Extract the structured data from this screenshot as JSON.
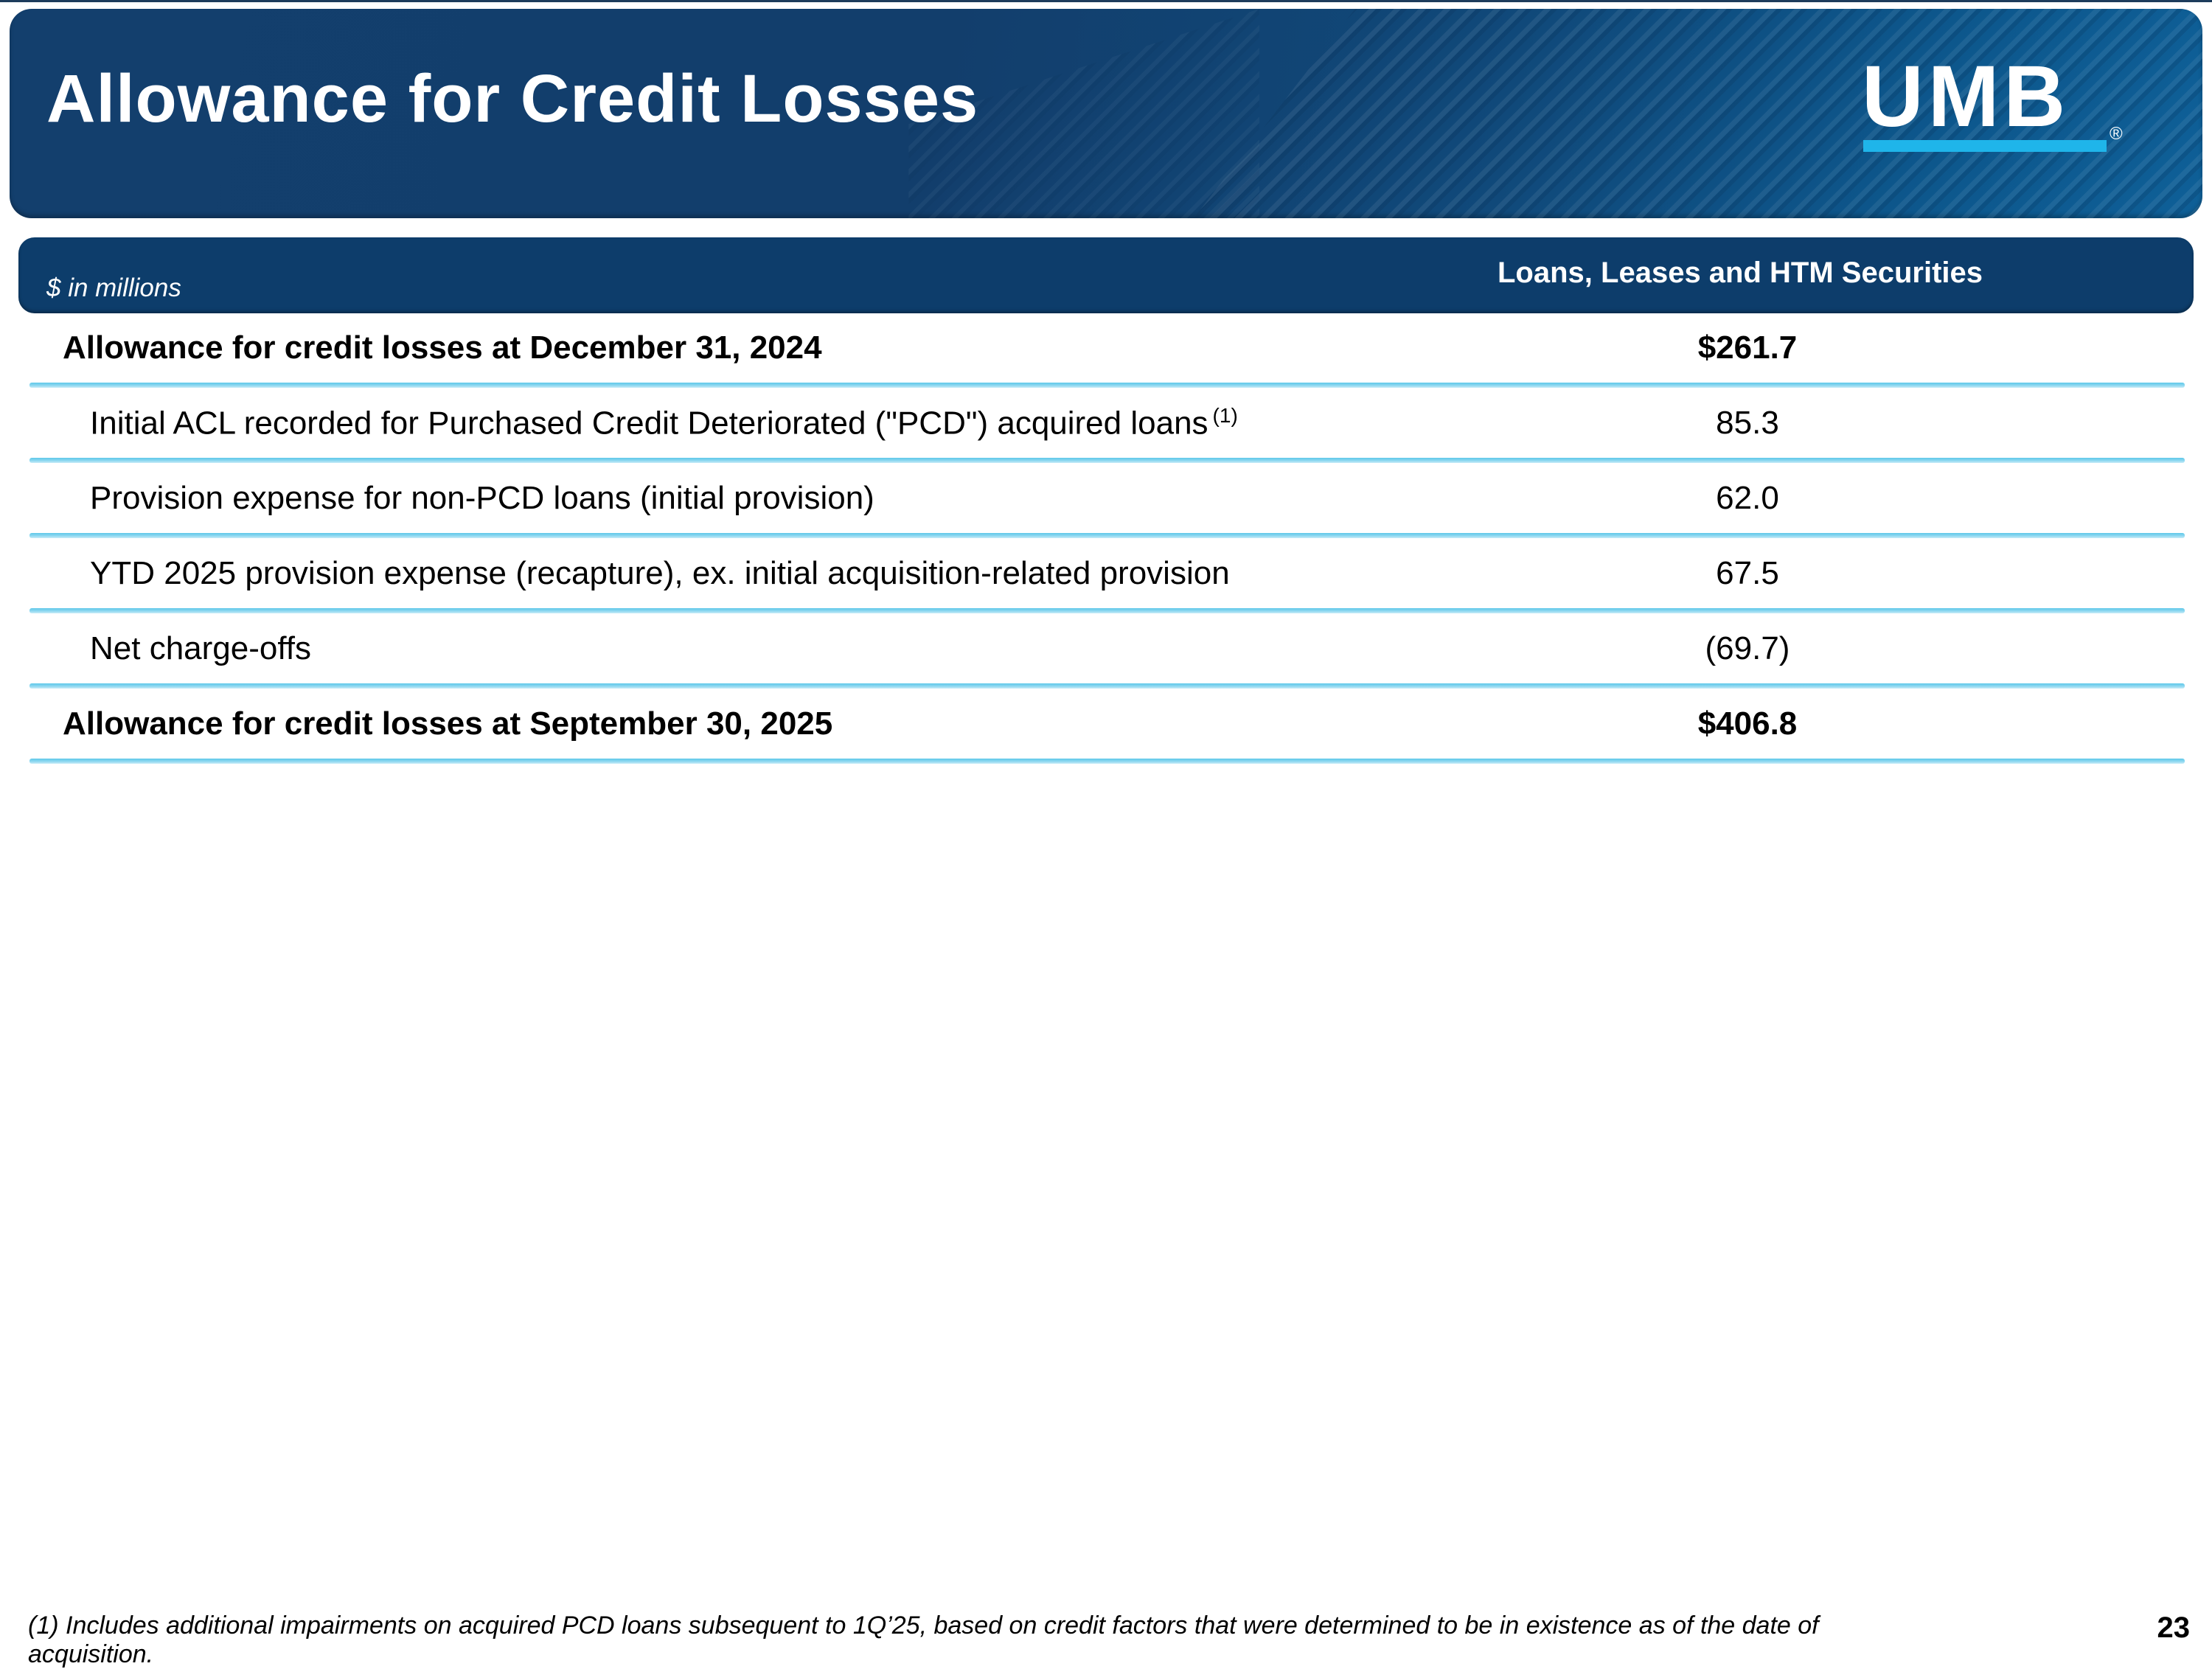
{
  "slide": {
    "title": "Allowance for Credit Losses",
    "logo": {
      "text": "UMB",
      "registered_mark": "®"
    },
    "page_number": "23"
  },
  "table": {
    "units_note": "$ in millions",
    "column_header": "Loans, Leases and HTM Securities",
    "rows": [
      {
        "label": "Allowance for credit losses at December 31, 2024",
        "value": "$261.7",
        "style": "total"
      },
      {
        "label": "Initial ACL recorded for Purchased Credit Deteriorated (\"PCD\") acquired loans",
        "footnote_ref": "(1)",
        "value": "85.3",
        "style": "detail"
      },
      {
        "label": "Provision expense for non-PCD loans (initial provision)",
        "value": "62.0",
        "style": "detail"
      },
      {
        "label": "YTD 2025 provision expense (recapture), ex. initial acquisition-related provision",
        "value": "67.5",
        "style": "detail"
      },
      {
        "label": "Net charge-offs",
        "value": "(69.7)",
        "style": "detail"
      },
      {
        "label": "Allowance for credit losses at September 30, 2025",
        "value": "$406.8",
        "style": "total"
      }
    ]
  },
  "footnote": "(1) Includes additional impairments on acquired PCD loans subsequent to 1Q’25, based on credit factors that were determined to be in existence as of the date of acquisition.",
  "colors": {
    "banner_navy": "#123e6c",
    "banner_blue_right": "#0e5f97",
    "header_bar_navy": "#0d3d6b",
    "logo_underline_cyan": "#1fb5ea",
    "row_separator_cyan": "#7ed0ec"
  }
}
